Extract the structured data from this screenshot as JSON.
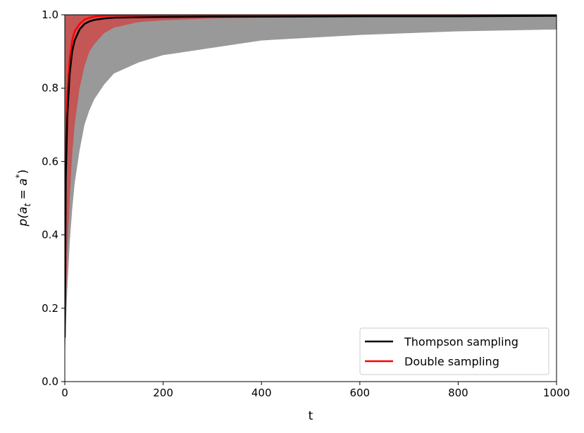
{
  "chart_data": {
    "type": "line",
    "xlabel": "t",
    "ylabel": "p(a_t = a*)",
    "ylabel_parts": {
      "main": "p(a",
      "sub": "t",
      "mid": " = a",
      "sup": "*",
      "end": ")"
    },
    "xlim": [
      0,
      1000
    ],
    "ylim": [
      0,
      1.0
    ],
    "xticks": [
      0,
      200,
      400,
      600,
      800,
      1000
    ],
    "yticks": [
      0.0,
      0.2,
      0.4,
      0.6,
      0.8,
      1.0
    ],
    "xtick_labels": [
      "0",
      "200",
      "400",
      "600",
      "800",
      "1000"
    ],
    "ytick_labels": [
      "0.0",
      "0.2",
      "0.4",
      "0.6",
      "0.8",
      "1.0"
    ],
    "grid": false,
    "legend_position": "bottom-right",
    "series": [
      {
        "name": "Thompson sampling",
        "color": "#000000",
        "band_color": "#999999",
        "x": [
          0,
          2,
          5,
          10,
          15,
          20,
          30,
          40,
          50,
          60,
          80,
          100,
          150,
          200,
          300,
          400,
          600,
          800,
          1000
        ],
        "values": [
          0.12,
          0.55,
          0.72,
          0.84,
          0.9,
          0.93,
          0.96,
          0.975,
          0.982,
          0.986,
          0.99,
          0.992,
          0.993,
          0.994,
          0.995,
          0.995,
          0.996,
          0.996,
          0.997
        ],
        "band_lower": [
          0.05,
          0.15,
          0.25,
          0.38,
          0.47,
          0.54,
          0.63,
          0.7,
          0.74,
          0.77,
          0.81,
          0.84,
          0.87,
          0.89,
          0.91,
          0.93,
          0.945,
          0.955,
          0.96
        ],
        "band_upper": [
          1.0,
          1.0,
          1.0,
          1.0,
          1.0,
          1.0,
          1.0,
          1.0,
          1.0,
          1.0,
          1.0,
          1.0,
          1.0,
          1.0,
          1.0,
          1.0,
          1.0,
          1.0,
          1.0
        ]
      },
      {
        "name": "Double sampling",
        "color": "#ff0000",
        "band_color": "#c94f4f",
        "x": [
          0,
          2,
          5,
          10,
          15,
          20,
          30,
          40,
          50,
          60,
          80,
          100,
          150,
          200,
          300,
          400,
          600,
          800,
          1000
        ],
        "values": [
          0.15,
          0.62,
          0.78,
          0.88,
          0.93,
          0.955,
          0.975,
          0.987,
          0.992,
          0.995,
          0.997,
          0.998,
          0.998,
          0.998,
          0.998,
          0.998,
          0.998,
          0.998,
          0.998
        ],
        "band_lower": [
          0.05,
          0.2,
          0.35,
          0.5,
          0.62,
          0.7,
          0.8,
          0.86,
          0.9,
          0.92,
          0.95,
          0.965,
          0.98,
          0.985,
          0.99,
          0.992,
          0.993,
          0.994,
          0.995
        ],
        "band_upper": [
          1.0,
          1.0,
          1.0,
          1.0,
          1.0,
          1.0,
          1.0,
          1.0,
          1.0,
          1.0,
          1.0,
          1.0,
          1.0,
          1.0,
          1.0,
          1.0,
          1.0,
          1.0,
          1.0
        ]
      }
    ]
  }
}
